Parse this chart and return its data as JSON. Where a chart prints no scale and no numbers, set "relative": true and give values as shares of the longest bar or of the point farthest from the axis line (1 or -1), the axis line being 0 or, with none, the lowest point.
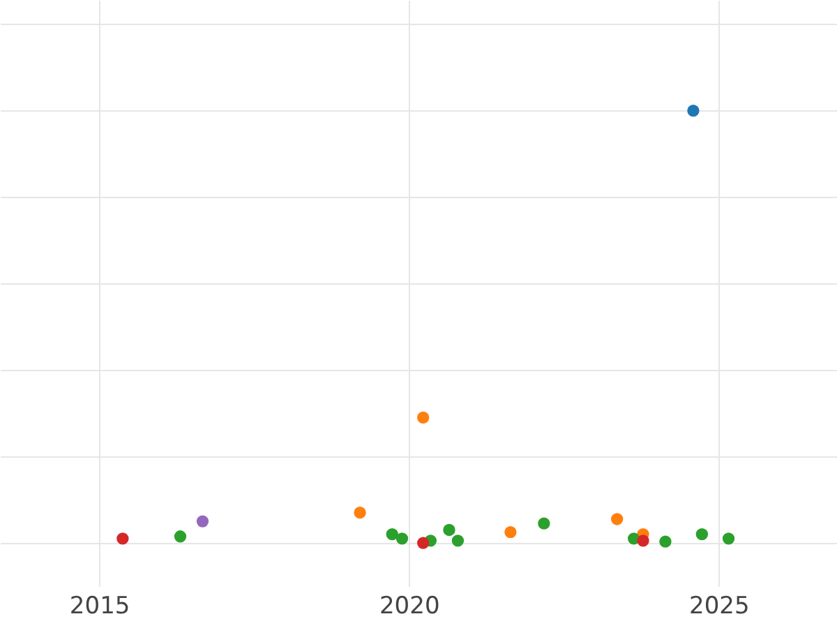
{
  "chart_data": {
    "type": "scatter",
    "relative": true,
    "marker": "circle",
    "grid": true,
    "legend": false,
    "xlim": [
      2013.4,
      2026.91
    ],
    "xticks": [
      2015,
      2020,
      2025
    ],
    "series": [
      {
        "color": "#1f77b4",
        "x": [
          2024.59
        ],
        "values": [
          1
        ]
      },
      {
        "color": "#ff7f0e",
        "x": [
          2019.21,
          2020.23,
          2021.64,
          2023.36,
          2023.78
        ],
        "values": [
          0.07,
          0.29,
          0.025,
          0.055,
          0.02
        ]
      },
      {
        "color": "#2ca02c",
        "x": [
          2016.31,
          2019.73,
          2019.89,
          2020.35,
          2020.65,
          2020.79,
          2022.18,
          2023.63,
          2024.14,
          2024.73,
          2025.16
        ],
        "values": [
          0.015,
          0.02,
          0.01,
          0.005,
          0.03,
          0.005,
          0.045,
          0.01,
          0.003,
          0.02,
          0.01
        ]
      },
      {
        "color": "#d62728",
        "x": [
          2015.38,
          2020.23,
          2023.78
        ],
        "values": [
          0.01,
          0,
          0.005
        ]
      },
      {
        "color": "#9467bd",
        "x": [
          2016.67
        ],
        "values": [
          0.05
        ]
      }
    ]
  }
}
